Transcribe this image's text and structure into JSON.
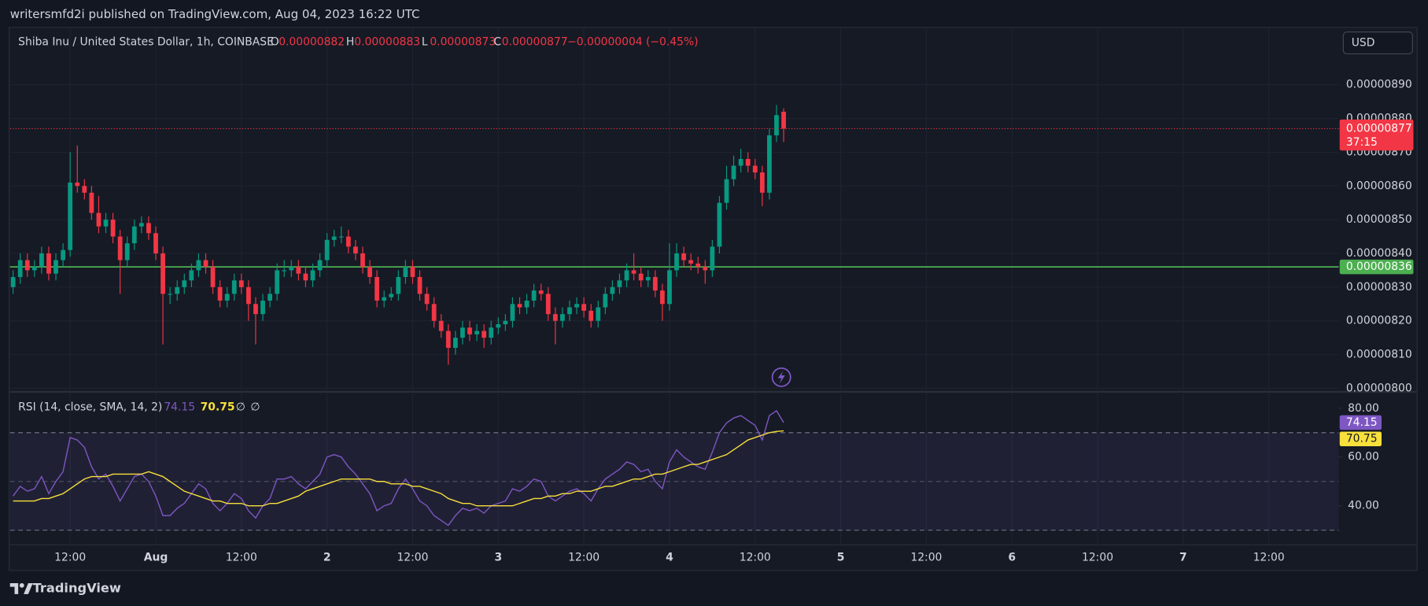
{
  "header": {
    "text": "writersmfd2i published on TradingView.com, Aug 04, 2023 16:22 UTC"
  },
  "chart_data": [
    {
      "type": "candlestick",
      "title": "Shiba Inu / United States Dollar, 1h, COINBASE",
      "legend_keys": [
        "O",
        "H",
        "L",
        "C"
      ],
      "change": "−0.00000004 (−0.45%)",
      "currency": "USD",
      "countdown": "37:15",
      "x": [
        4,
        5,
        6,
        7,
        8,
        9,
        10,
        11,
        12,
        13,
        14,
        15,
        16,
        17,
        18,
        19,
        20,
        21,
        22,
        23,
        24,
        25,
        26,
        27,
        28,
        29,
        30,
        31,
        32,
        33,
        34,
        35,
        36,
        37,
        38,
        39,
        40,
        41,
        42,
        43,
        44,
        45,
        46,
        47,
        48,
        49,
        50,
        51,
        52,
        53,
        54,
        55,
        56,
        57,
        58,
        59,
        60,
        61,
        62,
        63,
        64,
        65,
        66,
        67,
        68,
        69,
        70,
        71,
        72,
        73,
        74,
        75,
        76,
        77,
        78,
        79,
        80,
        81,
        82,
        83,
        84,
        85,
        86,
        87,
        88,
        89,
        90,
        91,
        92,
        93,
        94,
        95,
        96,
        97,
        98,
        99,
        100,
        101,
        102,
        103,
        104,
        105,
        106,
        107,
        108,
        109,
        110,
        111,
        112
      ],
      "open": [
        8.3e-06,
        8.33e-06,
        8.38e-06,
        8.35e-06,
        8.36e-06,
        8.4e-06,
        8.34e-06,
        8.38e-06,
        8.41e-06,
        8.61e-06,
        8.6e-06,
        8.58e-06,
        8.52e-06,
        8.48e-06,
        8.5e-06,
        8.45e-06,
        8.38e-06,
        8.43e-06,
        8.48e-06,
        8.49e-06,
        8.46e-06,
        8.4e-06,
        8.28e-06,
        8.28e-06,
        8.3e-06,
        8.32e-06,
        8.35e-06,
        8.38e-06,
        8.36e-06,
        8.3e-06,
        8.26e-06,
        8.28e-06,
        8.32e-06,
        8.3e-06,
        8.25e-06,
        8.22e-06,
        8.26e-06,
        8.28e-06,
        8.35e-06,
        8.35e-06,
        8.36e-06,
        8.34e-06,
        8.32e-06,
        8.35e-06,
        8.38e-06,
        8.44e-06,
        8.45e-06,
        8.45e-06,
        8.42e-06,
        8.4e-06,
        8.36e-06,
        8.33e-06,
        8.26e-06,
        8.27e-06,
        8.28e-06,
        8.33e-06,
        8.36e-06,
        8.33e-06,
        8.28e-06,
        8.25e-06,
        8.2e-06,
        8.17e-06,
        8.12e-06,
        8.15e-06,
        8.18e-06,
        8.16e-06,
        8.17e-06,
        8.15e-06,
        8.18e-06,
        8.19e-06,
        8.2e-06,
        8.25e-06,
        8.24e-06,
        8.26e-06,
        8.29e-06,
        8.28e-06,
        8.22e-06,
        8.2e-06,
        8.22e-06,
        8.24e-06,
        8.25e-06,
        8.23e-06,
        8.2e-06,
        8.24e-06,
        8.28e-06,
        8.3e-06,
        8.32e-06,
        8.35e-06,
        8.34e-06,
        8.32e-06,
        8.33e-06,
        8.29e-06,
        8.25e-06,
        8.35e-06,
        8.4e-06,
        8.38e-06,
        8.37e-06,
        8.36e-06,
        8.35e-06,
        8.42e-06,
        8.55e-06,
        8.62e-06,
        8.66e-06,
        8.68e-06,
        8.66e-06,
        8.64e-06,
        8.58e-06,
        8.75e-06,
        8.82e-06
      ],
      "high": [
        8.35e-06,
        8.4e-06,
        8.4e-06,
        8.38e-06,
        8.42e-06,
        8.42e-06,
        8.4e-06,
        8.43e-06,
        8.7e-06,
        8.72e-06,
        8.62e-06,
        8.6e-06,
        8.57e-06,
        8.52e-06,
        8.52e-06,
        8.47e-06,
        8.45e-06,
        8.5e-06,
        8.51e-06,
        8.51e-06,
        8.48e-06,
        8.42e-06,
        8.3e-06,
        8.32e-06,
        8.34e-06,
        8.37e-06,
        8.4e-06,
        8.4e-06,
        8.38e-06,
        8.32e-06,
        8.3e-06,
        8.34e-06,
        8.34e-06,
        8.32e-06,
        8.27e-06,
        8.28e-06,
        8.3e-06,
        8.37e-06,
        8.38e-06,
        8.38e-06,
        8.38e-06,
        8.36e-06,
        8.37e-06,
        8.4e-06,
        8.46e-06,
        8.47e-06,
        8.48e-06,
        8.47e-06,
        8.44e-06,
        8.42e-06,
        8.38e-06,
        8.35e-06,
        8.29e-06,
        8.3e-06,
        8.35e-06,
        8.38e-06,
        8.38e-06,
        8.35e-06,
        8.3e-06,
        8.27e-06,
        8.22e-06,
        8.19e-06,
        8.17e-06,
        8.2e-06,
        8.2e-06,
        8.19e-06,
        8.19e-06,
        8.2e-06,
        8.21e-06,
        8.22e-06,
        8.27e-06,
        8.27e-06,
        8.28e-06,
        8.31e-06,
        8.31e-06,
        8.3e-06,
        8.24e-06,
        8.24e-06,
        8.26e-06,
        8.27e-06,
        8.27e-06,
        8.25e-06,
        8.26e-06,
        8.3e-06,
        8.32e-06,
        8.34e-06,
        8.37e-06,
        8.4e-06,
        8.36e-06,
        8.35e-06,
        8.35e-06,
        8.31e-06,
        8.43e-06,
        8.43e-06,
        8.42e-06,
        8.4e-06,
        8.39e-06,
        8.38e-06,
        8.44e-06,
        8.57e-06,
        8.66e-06,
        8.69e-06,
        8.71e-06,
        8.7e-06,
        8.68e-06,
        8.66e-06,
        8.77e-06,
        8.84e-06,
        8.83e-06
      ],
      "low": [
        8.28e-06,
        8.31e-06,
        8.33e-06,
        8.33e-06,
        8.34e-06,
        8.32e-06,
        8.32e-06,
        8.36e-06,
        8.39e-06,
        8.58e-06,
        8.56e-06,
        8.5e-06,
        8.46e-06,
        8.46e-06,
        8.43e-06,
        8.28e-06,
        8.36e-06,
        8.41e-06,
        8.46e-06,
        8.44e-06,
        8.38e-06,
        8.13e-06,
        8.25e-06,
        8.26e-06,
        8.28e-06,
        8.3e-06,
        8.33e-06,
        8.34e-06,
        8.28e-06,
        8.24e-06,
        8.24e-06,
        8.26e-06,
        8.28e-06,
        8.2e-06,
        8.13e-06,
        8.2e-06,
        8.24e-06,
        8.26e-06,
        8.33e-06,
        8.33e-06,
        8.32e-06,
        8.3e-06,
        8.3e-06,
        8.33e-06,
        8.36e-06,
        8.42e-06,
        8.43e-06,
        8.4e-06,
        8.38e-06,
        8.34e-06,
        8.31e-06,
        8.24e-06,
        8.24e-06,
        8.26e-06,
        8.26e-06,
        8.31e-06,
        8.31e-06,
        8.26e-06,
        8.23e-06,
        8.18e-06,
        8.15e-06,
        8.07e-06,
        8.1e-06,
        8.13e-06,
        8.14e-06,
        8.14e-06,
        8.12e-06,
        8.13e-06,
        8.16e-06,
        8.17e-06,
        8.18e-06,
        8.22e-06,
        8.22e-06,
        8.24e-06,
        8.26e-06,
        8.2e-06,
        8.13e-06,
        8.18e-06,
        8.2e-06,
        8.22e-06,
        8.21e-06,
        8.18e-06,
        8.18e-06,
        8.22e-06,
        8.26e-06,
        8.28e-06,
        8.3e-06,
        8.32e-06,
        8.3e-06,
        8.3e-06,
        8.27e-06,
        8.2e-06,
        8.23e-06,
        8.33e-06,
        8.36e-06,
        8.35e-06,
        8.34e-06,
        8.31e-06,
        8.33e-06,
        8.4e-06,
        8.53e-06,
        8.6e-06,
        8.64e-06,
        8.64e-06,
        8.62e-06,
        8.54e-06,
        8.56e-06,
        8.73e-06,
        8.73e-06
      ],
      "close": [
        8.33e-06,
        8.38e-06,
        8.35e-06,
        8.36e-06,
        8.4e-06,
        8.34e-06,
        8.38e-06,
        8.41e-06,
        8.61e-06,
        8.6e-06,
        8.58e-06,
        8.52e-06,
        8.48e-06,
        8.5e-06,
        8.45e-06,
        8.38e-06,
        8.43e-06,
        8.48e-06,
        8.49e-06,
        8.46e-06,
        8.4e-06,
        8.28e-06,
        8.28e-06,
        8.3e-06,
        8.32e-06,
        8.35e-06,
        8.38e-06,
        8.36e-06,
        8.3e-06,
        8.26e-06,
        8.28e-06,
        8.32e-06,
        8.3e-06,
        8.25e-06,
        8.22e-06,
        8.26e-06,
        8.28e-06,
        8.35e-06,
        8.35e-06,
        8.36e-06,
        8.34e-06,
        8.32e-06,
        8.35e-06,
        8.38e-06,
        8.44e-06,
        8.45e-06,
        8.45e-06,
        8.42e-06,
        8.4e-06,
        8.36e-06,
        8.33e-06,
        8.26e-06,
        8.27e-06,
        8.28e-06,
        8.33e-06,
        8.36e-06,
        8.33e-06,
        8.28e-06,
        8.25e-06,
        8.2e-06,
        8.17e-06,
        8.12e-06,
        8.15e-06,
        8.18e-06,
        8.16e-06,
        8.17e-06,
        8.15e-06,
        8.18e-06,
        8.19e-06,
        8.2e-06,
        8.25e-06,
        8.24e-06,
        8.26e-06,
        8.29e-06,
        8.28e-06,
        8.22e-06,
        8.2e-06,
        8.22e-06,
        8.24e-06,
        8.25e-06,
        8.23e-06,
        8.2e-06,
        8.24e-06,
        8.28e-06,
        8.3e-06,
        8.32e-06,
        8.35e-06,
        8.34e-06,
        8.32e-06,
        8.33e-06,
        8.29e-06,
        8.25e-06,
        8.35e-06,
        8.4e-06,
        8.38e-06,
        8.37e-06,
        8.36e-06,
        8.35e-06,
        8.42e-06,
        8.55e-06,
        8.62e-06,
        8.66e-06,
        8.68e-06,
        8.66e-06,
        8.64e-06,
        8.58e-06,
        8.75e-06,
        8.81e-06,
        8.77e-06
      ],
      "up_color": "#089981",
      "down_color": "#f23645",
      "xlim": [
        3.57,
        189.8
      ],
      "xticks": [
        {
          "value": 12,
          "label": "12:00"
        },
        {
          "value": 24,
          "label": "Aug"
        },
        {
          "value": 36,
          "label": "12:00"
        },
        {
          "value": 48,
          "label": "2"
        },
        {
          "value": 60,
          "label": "12:00"
        },
        {
          "value": 72,
          "label": "3"
        },
        {
          "value": 84,
          "label": "12:00"
        },
        {
          "value": 96,
          "label": "4"
        },
        {
          "value": 108,
          "label": "12:00"
        },
        {
          "value": 120,
          "label": "5"
        },
        {
          "value": 132,
          "label": "12:00"
        },
        {
          "value": 144,
          "label": "6"
        },
        {
          "value": 156,
          "label": "12:00"
        },
        {
          "value": 168,
          "label": "7"
        },
        {
          "value": 180,
          "label": "12:00"
        }
      ],
      "ylim": [
        7.995e-06,
        9.07e-06
      ],
      "yticks": [
        {
          "value": 8e-06,
          "label": "0.00000800"
        },
        {
          "value": 8.1e-06,
          "label": "0.00000810"
        },
        {
          "value": 8.2e-06,
          "label": "0.00000820"
        },
        {
          "value": 8.3e-06,
          "label": "0.00000830"
        },
        {
          "value": 8.4e-06,
          "label": "0.00000840"
        },
        {
          "value": 8.5e-06,
          "label": "0.00000850"
        },
        {
          "value": 8.6e-06,
          "label": "0.00000860"
        },
        {
          "value": 8.7e-06,
          "label": "0.00000870"
        },
        {
          "value": 8.8e-06,
          "label": "0.00000880"
        },
        {
          "value": 8.9e-06,
          "label": "0.00000890"
        }
      ],
      "grid": true,
      "hlines": [
        {
          "value": 8.36e-06,
          "color": "#4caf50"
        }
      ]
    },
    {
      "type": "line",
      "title": "RSI (14, close, SMA, 14, 2)",
      "legend_extra": [
        "∅",
        "∅"
      ],
      "series": [
        {
          "color": "#7e57c2",
          "values": [
            44,
            48,
            46,
            47,
            52,
            45,
            50,
            54,
            68,
            67,
            64,
            56,
            51,
            53,
            48,
            42,
            47,
            52,
            53,
            50,
            44,
            36,
            36,
            39,
            41,
            45,
            49,
            47,
            41,
            38,
            41,
            45,
            43,
            38,
            35,
            40,
            43,
            51,
            51,
            52,
            49,
            47,
            50,
            53,
            60,
            61,
            60,
            56,
            53,
            49,
            45,
            38,
            40,
            41,
            47,
            51,
            47,
            42,
            40,
            36,
            34,
            32,
            36,
            39,
            38,
            39,
            37,
            40,
            41,
            42,
            47,
            46,
            48,
            51,
            50,
            44,
            42,
            44,
            46,
            47,
            45,
            42,
            47,
            51,
            53,
            55,
            58,
            57,
            54,
            55,
            50,
            47,
            58,
            63,
            60,
            58,
            56,
            55,
            62,
            70,
            74,
            76,
            77,
            75,
            73,
            67,
            77,
            79,
            74.15
          ]
        },
        {
          "color": "#f7e03b",
          "values": [
            42,
            42,
            42,
            42,
            43,
            43,
            44,
            45,
            47,
            49,
            51,
            52,
            52,
            52,
            53,
            53,
            53,
            53,
            53,
            54,
            53,
            52,
            50,
            48,
            46,
            45,
            44,
            43,
            42,
            42,
            41,
            41,
            41,
            40,
            40,
            40,
            41,
            41,
            42,
            43,
            44,
            46,
            47,
            48,
            49,
            50,
            51,
            51,
            51,
            51,
            51,
            50,
            50,
            49,
            49,
            49,
            48,
            48,
            47,
            46,
            45,
            43,
            42,
            41,
            41,
            40,
            40,
            40,
            40,
            40,
            40,
            41,
            42,
            43,
            43,
            44,
            44,
            45,
            45,
            46,
            46,
            46,
            47,
            48,
            48,
            49,
            50,
            51,
            51,
            52,
            53,
            53,
            54,
            55,
            56,
            57,
            57,
            58,
            59,
            60,
            61,
            63,
            65,
            67,
            68,
            69,
            70,
            70.5,
            70.75
          ]
        }
      ],
      "ylim": [
        24,
        86
      ],
      "yticks": [
        {
          "value": 40,
          "label": "40.00"
        },
        {
          "value": 60,
          "label": "60.00"
        },
        {
          "value": 80,
          "label": "80.00"
        }
      ],
      "levels": [
        30,
        50,
        70
      ]
    }
  ],
  "footer": {
    "brand": "TradingView"
  }
}
